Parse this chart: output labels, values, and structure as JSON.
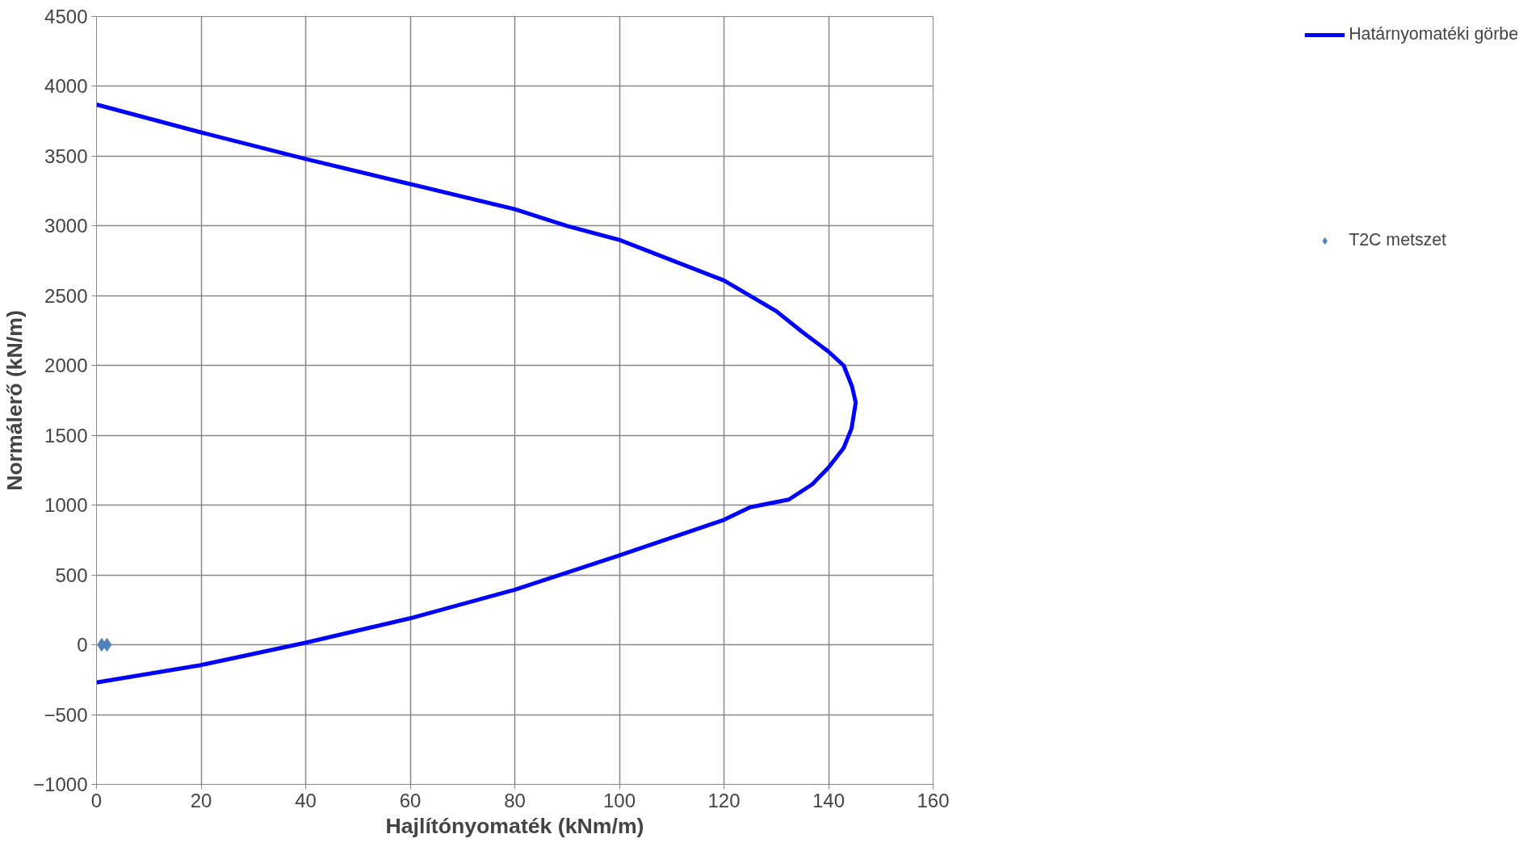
{
  "chart_data": {
    "type": "line",
    "xlabel": "Hajlítónyomaték (kNm/m)",
    "ylabel": "Normálerő (kN/m)",
    "xlim": [
      0,
      160
    ],
    "ylim": [
      -1000,
      4500
    ],
    "xticks": [
      0,
      20,
      40,
      60,
      80,
      100,
      120,
      140,
      160
    ],
    "yticks": [
      -1000,
      -500,
      0,
      500,
      1000,
      1500,
      2000,
      2500,
      3000,
      3500,
      4000,
      4500
    ],
    "grid": true,
    "legend": "right",
    "series": [
      {
        "name": "Határnyomatéki görbe",
        "color": "#0000ff",
        "x": [
          0,
          20,
          40,
          60,
          80,
          90,
          100,
          120,
          125,
          130,
          135,
          140,
          142.9,
          144.5,
          145.2,
          144.4,
          142.9,
          140,
          136.9,
          132.4,
          125,
          120,
          100,
          80,
          60,
          40,
          20,
          0
        ],
        "values": [
          3870,
          3670,
          3480,
          3300,
          3120,
          3000,
          2900,
          2610,
          2500,
          2390,
          2240,
          2100,
          2000,
          1850,
          1735,
          1550,
          1410,
          1270,
          1150,
          1040,
          985,
          895,
          640,
          395,
          190,
          15,
          -145,
          -270
        ]
      },
      {
        "name": "T2C metszet",
        "type": "scatter",
        "color": "#4f81bd",
        "marker": "diamond",
        "x": [
          1,
          2
        ],
        "values": [
          0,
          0
        ]
      }
    ]
  }
}
